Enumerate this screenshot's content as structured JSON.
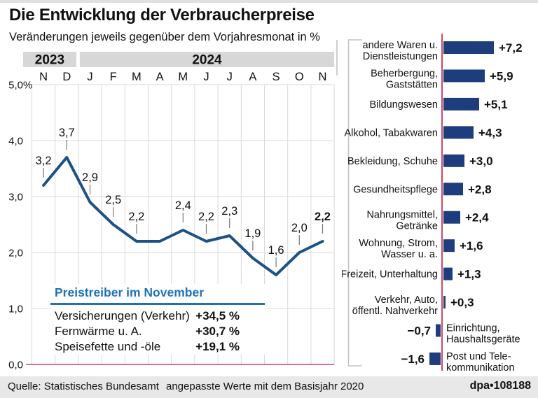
{
  "header": {
    "title": "Die Entwicklung der Verbraucherpreise",
    "subtitle": "Veränderungen jeweils gegenüber dem Vorjahresmonat in %"
  },
  "price_drivers": {
    "heading": "Preistreiber im November",
    "rows": [
      {
        "label": "Versicherungen (Verkehr)",
        "value": "+34,5 %"
      },
      {
        "label": "Fernwärme u. A.",
        "value": "+30,7 %"
      },
      {
        "label": "Speisefette und -öle",
        "value": "+19,1 %"
      }
    ]
  },
  "footer": {
    "source": "Quelle: Statistisches Bundesamt",
    "note": "angepasste Werte mit dem Basisjahr 2020",
    "credit": "dpa•108188"
  },
  "colors": {
    "navy_bar": "#1e3d7d",
    "line_blue": "#1d5285",
    "heading_blue": "#1d72b8",
    "red_axis": "#cc4868",
    "grid_gray": "#d9d9d9",
    "band_gray": "#d7d7d7",
    "leader_gray": "#787878",
    "bracket_gray": "#c3c3c3",
    "footer_bg": "#e8e8e8"
  },
  "chart_data": [
    {
      "type": "line",
      "x": [
        "N",
        "D",
        "J",
        "F",
        "M",
        "A",
        "M",
        "J",
        "J",
        "A",
        "S",
        "O",
        "N"
      ],
      "year_bands": [
        {
          "label": "2023",
          "from": 0,
          "to": 2
        },
        {
          "label": "2024",
          "from": 2,
          "to": 13
        }
      ],
      "values": [
        3.2,
        3.7,
        2.9,
        2.5,
        2.2,
        2.2,
        2.4,
        2.2,
        2.3,
        1.9,
        1.6,
        2.0,
        2.2
      ],
      "point_labels": [
        "3,2",
        "3,7",
        "2,9",
        "2,5",
        "2,2",
        "",
        "2,4",
        "2,2",
        "2,3",
        "1,9",
        "1,6",
        "2,0",
        "2,2"
      ],
      "last_point_bold": true,
      "ylim": [
        0,
        5
      ],
      "yticks": [
        "5,0",
        "4,0",
        "3,0",
        "2,0",
        "1,0",
        "0,0"
      ],
      "ytick_values": [
        5,
        4,
        3,
        2,
        1,
        0
      ],
      "ytick_suffix": " %",
      "grid": true,
      "zero_line": "red"
    },
    {
      "type": "bar",
      "orientation": "horizontal",
      "categories": [
        [
          "andere Waren u.",
          "Dienstleistungen"
        ],
        [
          "Beherbergung,",
          "Gaststätten"
        ],
        [
          "Bildungswesen"
        ],
        [
          "Alkohol, Tabakwaren"
        ],
        [
          "Bekleidung, Schuhe"
        ],
        [
          "Gesundheitspflege"
        ],
        [
          "Nahrungsmittel,",
          "Getränke"
        ],
        [
          "Wohnung, Strom,",
          "Wasser u. a."
        ],
        [
          "Freizeit, Unterhaltung"
        ],
        [
          "Verkehr, Auto,",
          "öffentl. Nahverkehr"
        ],
        [
          "Einrichtung,",
          "Haushaltsgeräte"
        ],
        [
          "Post und Tele-",
          "kommunikation"
        ]
      ],
      "values": [
        7.2,
        5.9,
        5.1,
        4.3,
        3.0,
        2.8,
        2.4,
        1.6,
        1.3,
        0.3,
        -0.7,
        -1.6
      ],
      "value_labels": [
        "+7,2",
        "+5,9",
        "+5,1",
        "+4,3",
        "+3,0",
        "+2,8",
        "+2,4",
        "+1,6",
        "+1,3",
        "+0,3",
        "−0,7",
        "−1,6"
      ],
      "xlim": [
        -2,
        8
      ]
    }
  ]
}
